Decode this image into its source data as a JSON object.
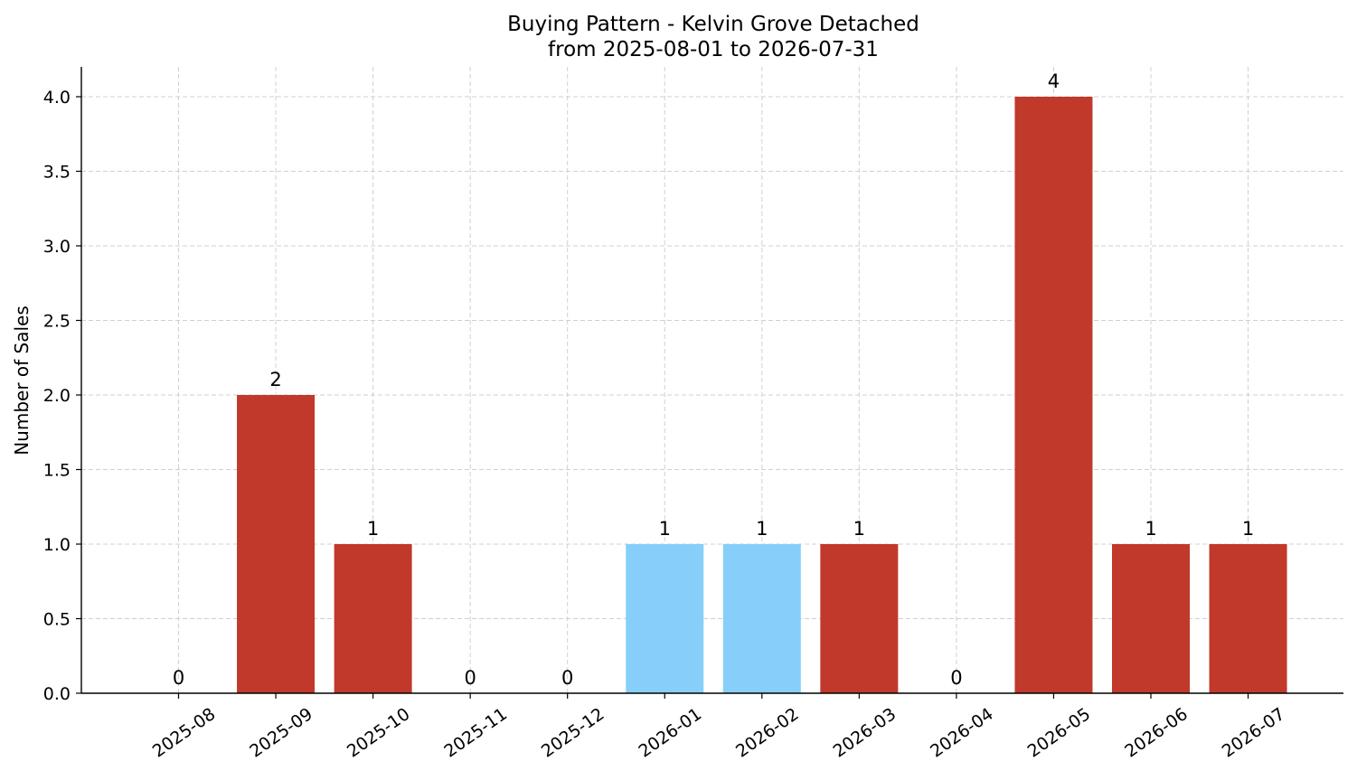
{
  "chart_data": {
    "type": "bar",
    "title": "Buying Pattern - Kelvin Grove Detached",
    "subtitle": "from 2025-08-01 to 2026-07-31",
    "xlabel": "",
    "ylabel": "Number of Sales",
    "categories": [
      "2025-08",
      "2025-09",
      "2025-10",
      "2025-11",
      "2025-12",
      "2026-01",
      "2026-02",
      "2026-03",
      "2026-04",
      "2026-05",
      "2026-06",
      "2026-07"
    ],
    "values": [
      0,
      2,
      1,
      0,
      0,
      1,
      1,
      1,
      0,
      4,
      1,
      1
    ],
    "bar_colors": [
      "#c0392b",
      "#c0392b",
      "#c0392b",
      "#c0392b",
      "#c0392b",
      "#87cefa",
      "#87cefa",
      "#c0392b",
      "#c0392b",
      "#c0392b",
      "#c0392b",
      "#c0392b"
    ],
    "ylim": [
      0,
      4.2
    ],
    "yticks": [
      "0.0",
      "0.5",
      "1.0",
      "1.5",
      "2.0",
      "2.5",
      "3.0",
      "3.5",
      "4.0"
    ],
    "grid": true,
    "legend": "none"
  }
}
